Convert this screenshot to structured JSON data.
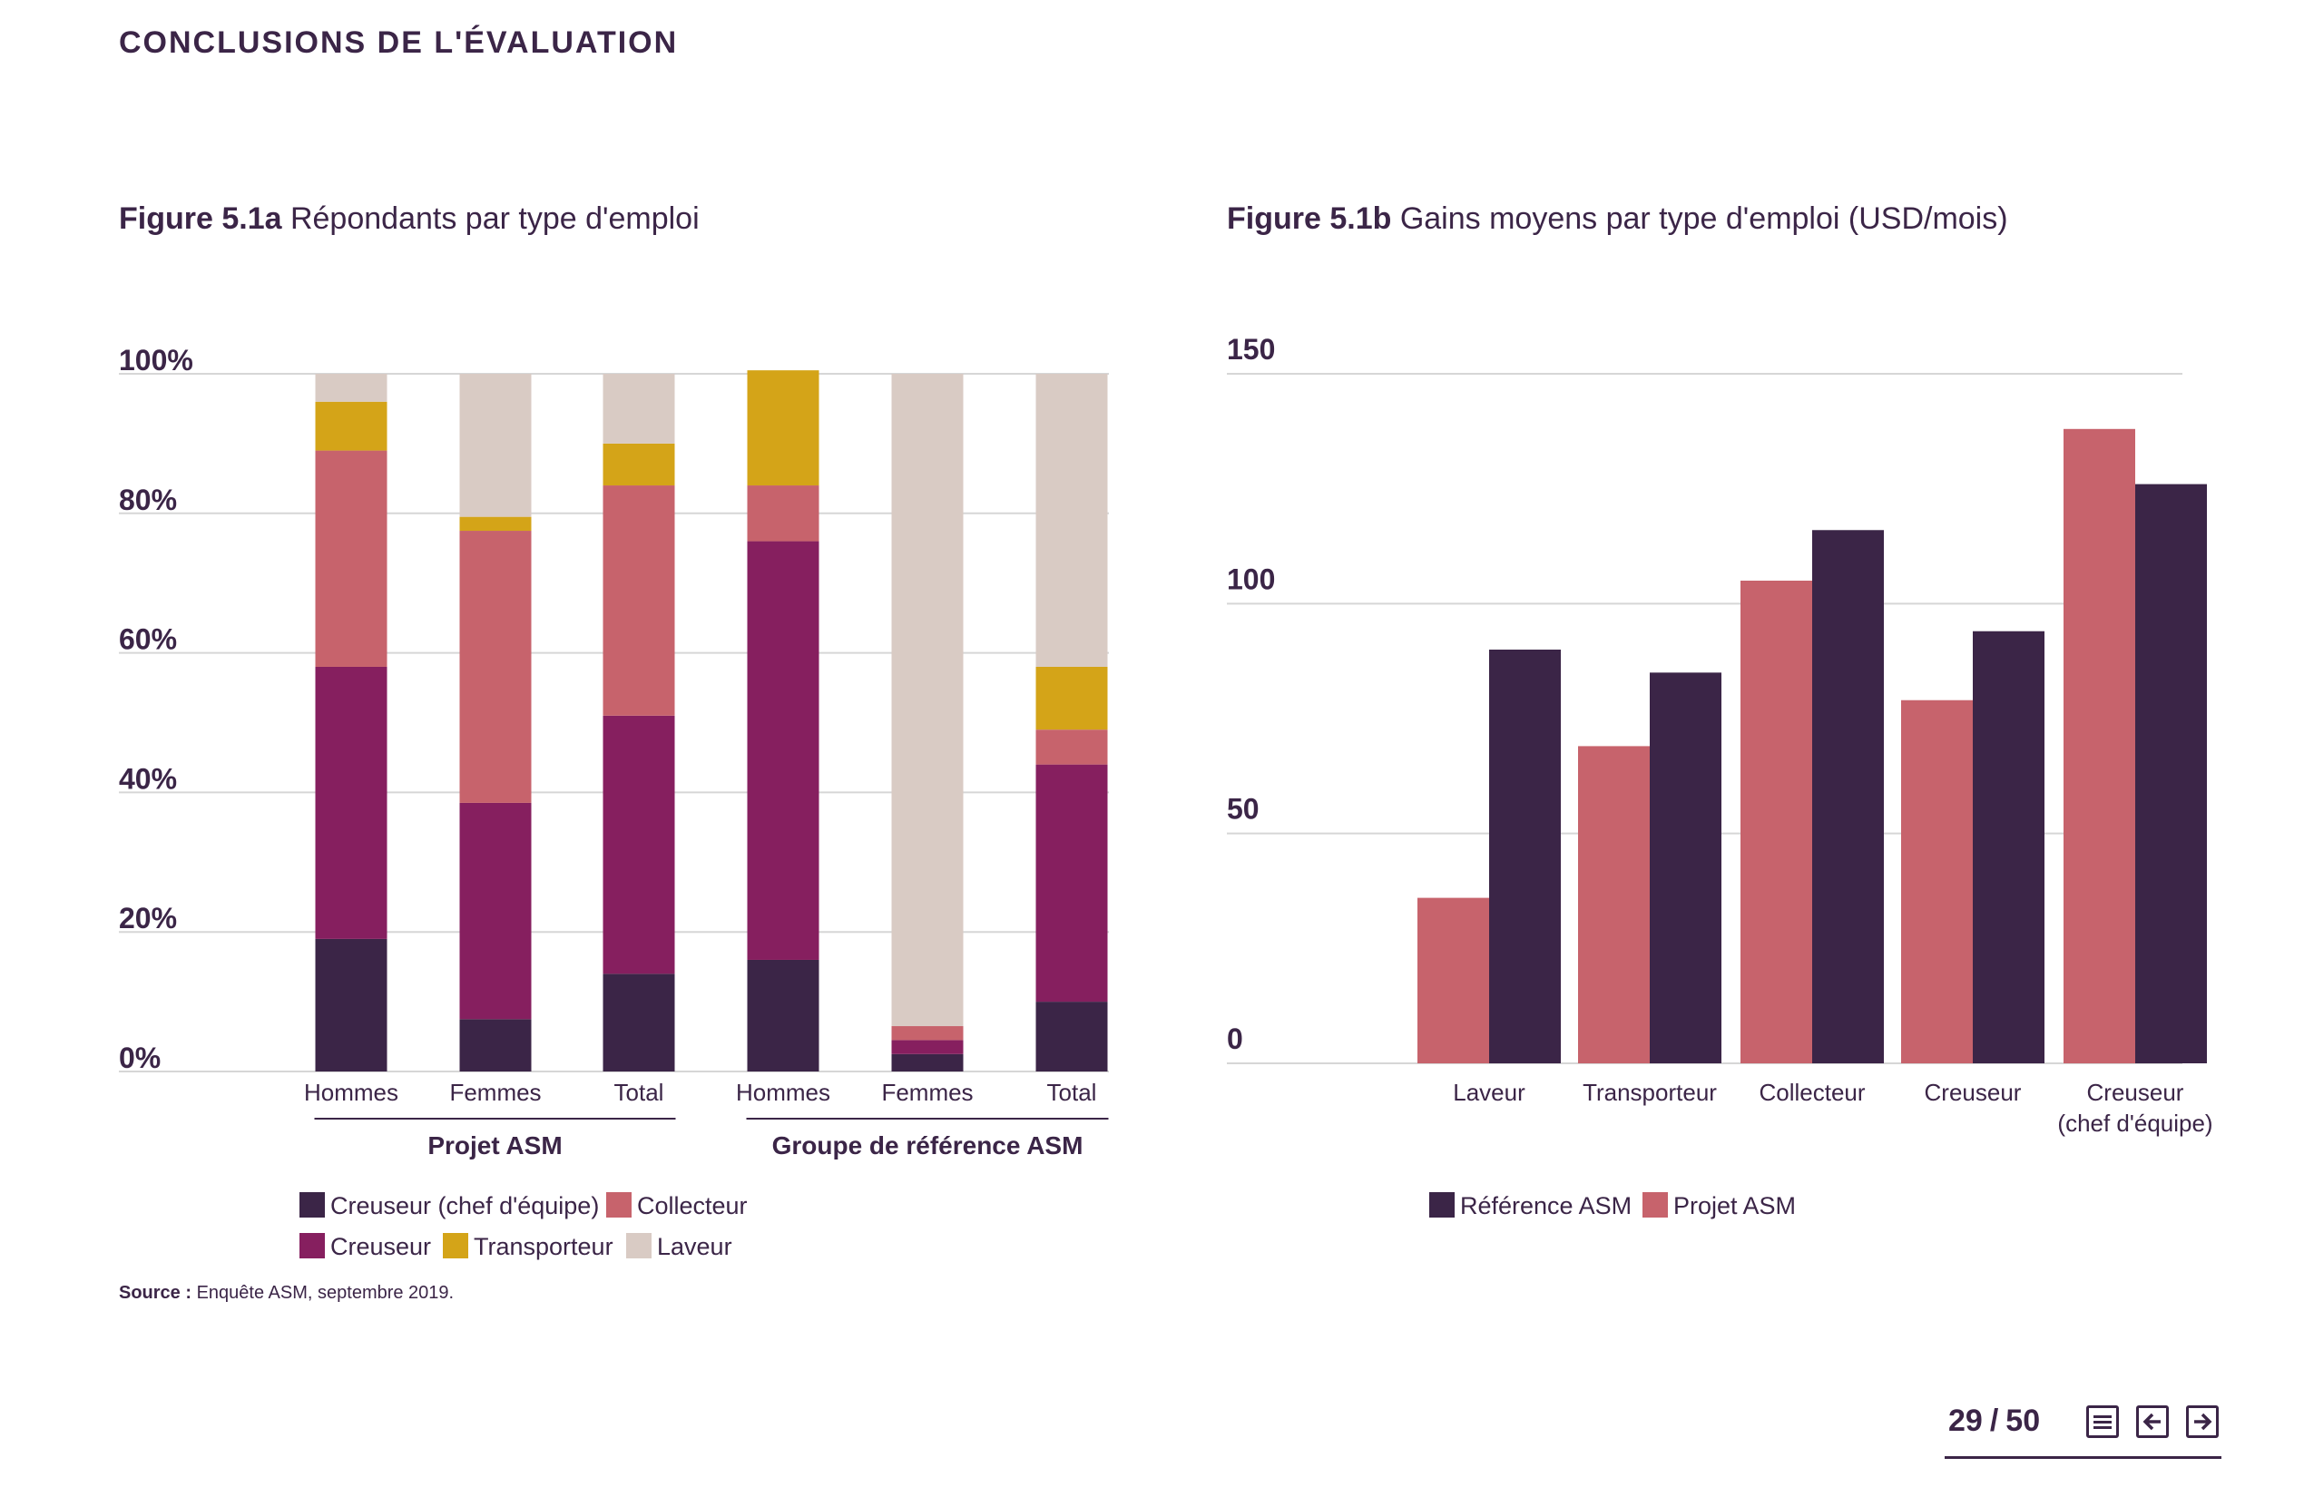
{
  "header": {
    "section_title": "CONCLUSIONS DE L'ÉVALUATION"
  },
  "figure_a": {
    "label": "Figure 5.1a",
    "title": "Répondants par type d'emploi"
  },
  "figure_b": {
    "label": "Figure 5.1b",
    "title": "Gains moyens par type d'emploi (USD/mois)"
  },
  "source": {
    "label": "Source :",
    "text": "Enquête ASM, septembre 2019."
  },
  "pagination": {
    "current": "29",
    "separator": "/",
    "total": "50"
  },
  "colors": {
    "dark": "#3b2547",
    "purple": "#861f5f",
    "pink": "#c7636c",
    "gold": "#d4a418",
    "beige": "#d9cbc4",
    "grid": "#d6d6d6",
    "text": "#3b2547"
  },
  "chart_data": [
    {
      "type": "bar",
      "stacked": true,
      "title": "Répondants par type d'emploi",
      "ylim": [
        0,
        100
      ],
      "y_ticks": [
        "0%",
        "20%",
        "40%",
        "60%",
        "80%",
        "100%"
      ],
      "groups": [
        {
          "label": "Projet ASM",
          "categories": [
            "Hommes",
            "Femmes",
            "Total"
          ]
        },
        {
          "label": "Groupe de référence ASM",
          "categories": [
            "Hommes",
            "Femmes",
            "Total"
          ]
        }
      ],
      "categories": [
        "Hommes",
        "Femmes",
        "Total",
        "Hommes",
        "Femmes",
        "Total"
      ],
      "series": [
        {
          "name": "Creuseur (chef d'équipe)",
          "color": "#3b2547",
          "values": [
            19,
            7.5,
            14,
            16,
            2.5,
            10
          ]
        },
        {
          "name": "Creuseur",
          "color": "#861f5f",
          "values": [
            39,
            31,
            37,
            60,
            2,
            34
          ]
        },
        {
          "name": "Collecteur",
          "color": "#c7636c",
          "values": [
            31,
            39,
            33,
            8,
            2,
            5
          ]
        },
        {
          "name": "Transporteur",
          "color": "#d4a418",
          "values": [
            7,
            2,
            6,
            16.5,
            0,
            9
          ]
        },
        {
          "name": "Laveur",
          "color": "#d9cbc4",
          "values": [
            4,
            20.5,
            10,
            0,
            93.5,
            42
          ]
        }
      ],
      "legend": [
        {
          "name": "Creuseur (chef d'équipe)",
          "color": "#3b2547"
        },
        {
          "name": "Collecteur",
          "color": "#c7636c"
        },
        {
          "name": "Creuseur",
          "color": "#861f5f"
        },
        {
          "name": "Transporteur",
          "color": "#d4a418"
        },
        {
          "name": "Laveur",
          "color": "#d9cbc4"
        }
      ],
      "legend_position": "bottom-left"
    },
    {
      "type": "bar",
      "stacked": false,
      "title": "Gains moyens par type d'emploi (USD/mois)",
      "ylim": [
        0,
        150
      ],
      "y_ticks": [
        "0",
        "50",
        "100",
        "150"
      ],
      "categories": [
        "Laveur",
        "Transporteur",
        "Collecteur",
        "Creuseur",
        "Creuseur (chef d'équipe)"
      ],
      "category_lines": [
        [
          "Laveur"
        ],
        [
          "Transporteur"
        ],
        [
          "Collecteur"
        ],
        [
          "Creuseur"
        ],
        [
          "Creuseur",
          "(chef d'équipe)"
        ]
      ],
      "series": [
        {
          "name": "Projet ASM",
          "color": "#c7636c",
          "values": [
            36,
            69,
            105,
            79,
            138
          ]
        },
        {
          "name": "Référence ASM",
          "color": "#3b2547",
          "values": [
            90,
            85,
            116,
            94,
            126
          ]
        }
      ],
      "legend": [
        {
          "name": "Référence ASM",
          "color": "#3b2547"
        },
        {
          "name": "Projet ASM",
          "color": "#c7636c"
        }
      ],
      "legend_position": "bottom-left"
    }
  ]
}
